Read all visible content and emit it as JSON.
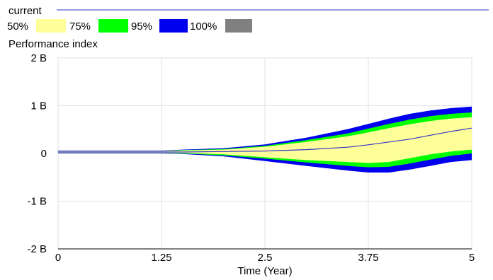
{
  "chart_data": {
    "type": "area",
    "legend": {
      "current_label": "current",
      "current_color": "#3333cc",
      "bands": [
        {
          "label": "50%",
          "color": "#ffff99"
        },
        {
          "label": "75%",
          "color": "#00ff00"
        },
        {
          "label": "95%",
          "color": "#0000ee"
        },
        {
          "label": "100%",
          "color": "#808080"
        }
      ]
    },
    "ylabel": "Performance index",
    "xlabel": "Time (Year)",
    "xlim": [
      0,
      5
    ],
    "ylim": [
      -2,
      2
    ],
    "x_ticks": [
      "0",
      "1.25",
      "2.5",
      "3.75",
      "5"
    ],
    "y_ticks": [
      "2 B",
      "1 B",
      "0",
      "-1 B",
      "-2 B"
    ],
    "grid": true,
    "x": [
      0,
      0.5,
      1,
      1.25,
      1.5,
      2,
      2.5,
      3,
      3.5,
      3.75,
      4,
      4.25,
      4.5,
      4.75,
      5
    ],
    "current": [
      0.03,
      0.03,
      0.03,
      0.03,
      0.03,
      0.04,
      0.05,
      0.08,
      0.13,
      0.18,
      0.24,
      0.3,
      0.38,
      0.46,
      0.53
    ],
    "band_50": {
      "upper": [
        0.05,
        0.05,
        0.05,
        0.05,
        0.06,
        0.08,
        0.14,
        0.24,
        0.36,
        0.44,
        0.53,
        0.61,
        0.68,
        0.73,
        0.76
      ],
      "lower": [
        0.01,
        0.01,
        0.01,
        0.01,
        0.01,
        -0.02,
        -0.08,
        -0.14,
        -0.18,
        -0.2,
        -0.18,
        -0.1,
        -0.02,
        0.04,
        0.08
      ]
    },
    "band_75": {
      "upper": [
        0.05,
        0.05,
        0.05,
        0.05,
        0.07,
        0.09,
        0.16,
        0.28,
        0.42,
        0.52,
        0.62,
        0.71,
        0.78,
        0.83,
        0.86
      ],
      "lower": [
        0.01,
        0.01,
        0.01,
        0.01,
        0.0,
        -0.04,
        -0.11,
        -0.19,
        -0.26,
        -0.29,
        -0.28,
        -0.21,
        -0.13,
        -0.05,
        0.0
      ]
    },
    "band_95": {
      "upper": [
        0.06,
        0.06,
        0.06,
        0.06,
        0.08,
        0.11,
        0.19,
        0.33,
        0.51,
        0.62,
        0.73,
        0.83,
        0.9,
        0.95,
        0.98
      ],
      "lower": [
        0.0,
        0.0,
        0.0,
        0.0,
        -0.01,
        -0.06,
        -0.16,
        -0.26,
        -0.36,
        -0.4,
        -0.4,
        -0.34,
        -0.26,
        -0.18,
        -0.14
      ]
    }
  }
}
